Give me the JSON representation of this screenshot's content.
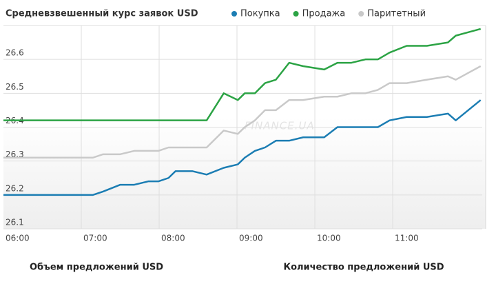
{
  "chart_data": {
    "type": "line",
    "title": "Средневзвешенный курс заявок USD",
    "watermark": "FINANCE.UA",
    "x": [
      6.0,
      7.15,
      7.28,
      7.5,
      7.68,
      7.86,
      7.99,
      8.12,
      8.21,
      8.43,
      8.61,
      8.83,
      9.01,
      9.1,
      9.23,
      9.36,
      9.5,
      9.67,
      9.85,
      10.12,
      10.29,
      10.47,
      10.65,
      10.81,
      10.96,
      11.18,
      11.44,
      11.71,
      11.81,
      11.97,
      12.13
    ],
    "series": [
      {
        "name": "Покупка",
        "color": "#1b7db3",
        "values": [
          26.2,
          26.2,
          26.21,
          26.23,
          26.23,
          26.24,
          26.24,
          26.25,
          26.27,
          26.27,
          26.26,
          26.28,
          26.29,
          26.31,
          26.33,
          26.34,
          26.36,
          26.36,
          26.37,
          26.37,
          26.4,
          26.4,
          26.4,
          26.4,
          26.42,
          26.43,
          26.43,
          26.44,
          26.42,
          26.45,
          26.48
        ]
      },
      {
        "name": "Продажа",
        "color": "#2ba344",
        "values": [
          26.42,
          26.42,
          26.42,
          26.42,
          26.42,
          26.42,
          26.42,
          26.42,
          26.42,
          26.42,
          26.42,
          26.5,
          26.48,
          26.5,
          26.5,
          26.53,
          26.54,
          26.59,
          26.58,
          26.57,
          26.59,
          26.59,
          26.6,
          26.6,
          26.62,
          26.64,
          26.64,
          26.65,
          26.67,
          26.68,
          26.69
        ]
      },
      {
        "name": "Паритетный",
        "color": "#c9c9c9",
        "values": [
          26.31,
          26.31,
          26.32,
          26.32,
          26.33,
          26.33,
          26.33,
          26.34,
          26.34,
          26.34,
          26.34,
          26.39,
          26.38,
          26.4,
          26.42,
          26.45,
          26.45,
          26.48,
          26.48,
          26.49,
          26.49,
          26.5,
          26.5,
          26.51,
          26.53,
          26.53,
          26.54,
          26.55,
          26.54,
          26.56,
          26.58
        ]
      }
    ],
    "xlim": [
      6,
      12.15
    ],
    "xticks": [
      {
        "value": 6,
        "label": "06:00"
      },
      {
        "value": 7,
        "label": "07:00"
      },
      {
        "value": 8,
        "label": "08:00"
      },
      {
        "value": 9,
        "label": "09:00"
      },
      {
        "value": 10,
        "label": "10:00"
      },
      {
        "value": 11,
        "label": "11:00"
      }
    ],
    "ylim": [
      26.1,
      26.7
    ],
    "yticks": [
      26.1,
      26.2,
      26.3,
      26.4,
      26.5,
      26.6
    ],
    "grid": true
  },
  "footer": {
    "links": [
      "Объем предложений USD",
      "Количество предложений USD"
    ]
  }
}
